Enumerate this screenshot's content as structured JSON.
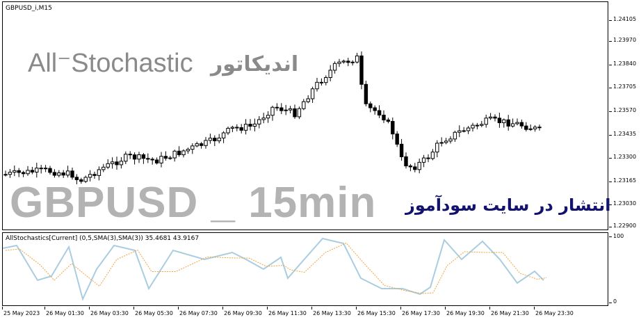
{
  "main": {
    "symbol_label": "GBPUSD_i,M15",
    "title_en": "All⁻Stochastic",
    "title_fa": "اندیکاتور",
    "big_label": "GBPUSD _ 15min",
    "publish_fa": "انتشار در سایت سودآموز"
  },
  "price_axis": [
    "1.24105",
    "1.23970",
    "1.23840",
    "1.23705",
    "1.23570",
    "1.23435",
    "1.23300",
    "1.23165",
    "1.23030",
    "1.22900"
  ],
  "oscillator": {
    "label": "AllStochastics[Current] (0,5,SMA(3),SMA(3)) 35.4681 43.9167",
    "axis_top": "100",
    "axis_bottom": "0"
  },
  "time_axis": [
    "25 May 2023",
    "26 May 01:30",
    "26 May 03:30",
    "26 May 05:30",
    "26 May 07:30",
    "26 May 09:30",
    "26 May 11:30",
    "26 May 13:30",
    "26 May 15:30",
    "26 May 17:30",
    "26 May 19:30",
    "26 May 21:30",
    "26 May 23:30"
  ],
  "colors": {
    "main_line": "#a9cde0",
    "signal_line": "#f2a23a",
    "candle": "#000000"
  }
}
